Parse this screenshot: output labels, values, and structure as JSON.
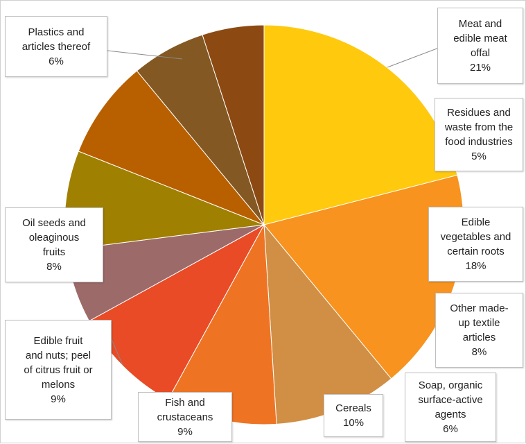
{
  "chart_data": {
    "type": "pie",
    "title": "",
    "slices": [
      {
        "label": "Meat and\nedible meat\noffal",
        "value": 21,
        "pct_label": "21%",
        "color": "#FFC90E"
      },
      {
        "label": "Edible\nvegetables and\ncertain roots",
        "value": 18,
        "pct_label": "18%",
        "color": "#F7931E"
      },
      {
        "label": "Cereals",
        "value": 10,
        "pct_label": "10%",
        "color": "#D08F45"
      },
      {
        "label": "Fish and\ncrustaceans",
        "value": 9,
        "pct_label": "9%",
        "color": "#EE7424"
      },
      {
        "label": "Edible fruit\nand nuts; peel\nof citrus fruit or\nmelons",
        "value": 9,
        "pct_label": "9%",
        "color": "#E84B26"
      },
      {
        "label": "Soap, organic\nsurface-active\nagents",
        "value": 6,
        "pct_label": "6%",
        "color": "#9D6A6A"
      },
      {
        "label": "Oil seeds and\noleaginous\nfruits",
        "value": 8,
        "pct_label": "8%",
        "color": "#A08000"
      },
      {
        "label": "Other made-\nup textile\narticles",
        "value": 8,
        "pct_label": "8%",
        "color": "#B86000"
      },
      {
        "label": "Plastics and\narticles thereof",
        "value": 6,
        "pct_label": "6%",
        "color": "#835822"
      },
      {
        "label": "Residues and\nwaste from the\nfood industries",
        "value": 5,
        "pct_label": "5%",
        "color": "#8C4A12"
      }
    ]
  }
}
